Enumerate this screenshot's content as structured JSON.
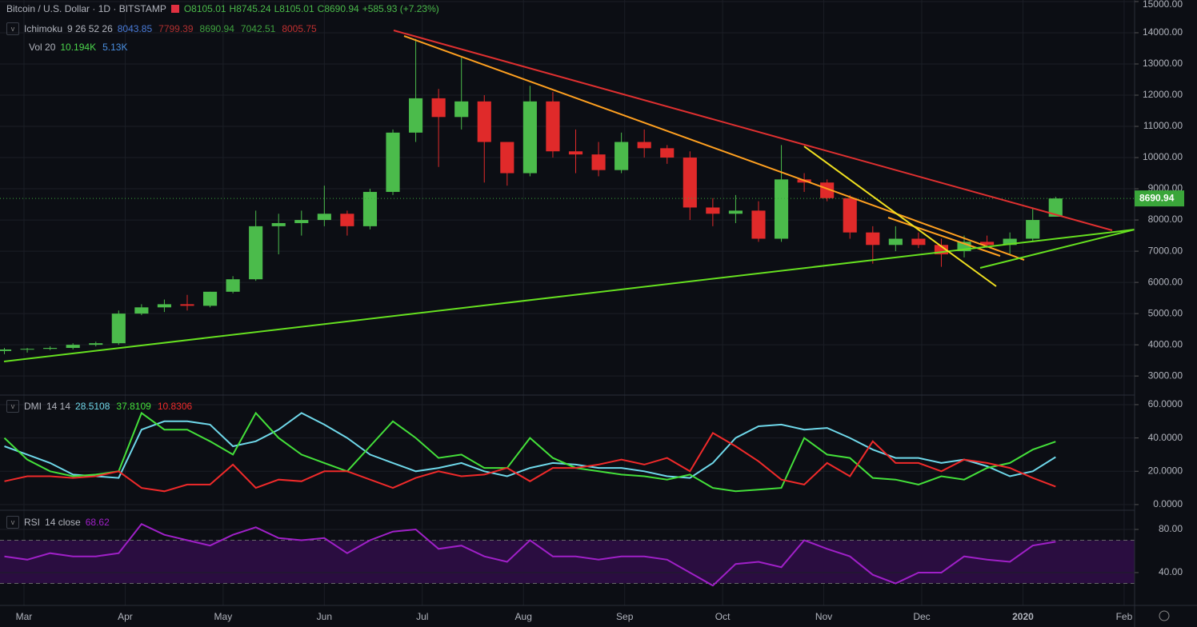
{
  "header": {
    "symbol": "Bitcoin / U.S. Dollar · 1D · BITSTAMP",
    "ohlc": [
      "O8105.01",
      "H8745.24",
      "L8105.01",
      "C8690.94",
      "+585.93 (+7.23%)"
    ],
    "ichimoku": {
      "name": "Ichimoku",
      "params": "9 26 52 26",
      "values": [
        8043.85,
        7799.39,
        8690.94,
        7042.51,
        8005.75
      ],
      "colors": [
        "#4a7bd8",
        "#b03030",
        "#3fa33f",
        "#3fa33f",
        "#c03030"
      ]
    },
    "volume": {
      "name": "Vol 20",
      "values": [
        "10.194K",
        "5.13K"
      ],
      "colors": [
        "#4bd54b",
        "#4a8fe0"
      ]
    },
    "dmi": {
      "name": "DMI",
      "params": "14 14"
    },
    "rsi": {
      "name": "RSI",
      "params": "14 close"
    }
  },
  "chart_data": [
    {
      "type": "candlestick",
      "up_color": "#4bbb4b",
      "down_color": "#e02a2a",
      "x": [
        -6,
        1,
        8,
        15,
        22,
        29,
        36,
        43,
        50,
        57,
        64,
        71,
        78,
        85,
        92,
        99,
        106,
        113,
        120,
        127,
        134,
        141,
        148,
        155,
        162,
        169,
        176,
        183,
        190,
        197,
        204,
        211,
        218,
        225,
        232,
        239,
        246,
        253,
        260,
        267,
        274,
        281,
        288,
        295,
        302,
        309,
        316
      ],
      "open": [
        3800,
        3850,
        3870,
        3900,
        4000,
        4050,
        5000,
        5200,
        5300,
        5250,
        5700,
        6100,
        7800,
        7900,
        8000,
        8200,
        7800,
        8900,
        10800,
        11900,
        11300,
        11800,
        10500,
        9500,
        11800,
        10200,
        10100,
        9600,
        10500,
        10300,
        10000,
        8400,
        8200,
        8300,
        7400,
        9300,
        9200,
        8700,
        7600,
        7200,
        7400,
        7200,
        7000,
        7300,
        7200,
        7400,
        8105.01
      ],
      "high": [
        3900,
        3900,
        3950,
        4050,
        4100,
        5100,
        5300,
        5450,
        5600,
        5700,
        6200,
        8300,
        8200,
        8300,
        9100,
        8300,
        9000,
        10900,
        13800,
        12200,
        13200,
        12000,
        10500,
        12300,
        12100,
        10900,
        10500,
        10800,
        10900,
        10400,
        10200,
        8700,
        8800,
        8600,
        10400,
        9500,
        9300,
        8800,
        7800,
        7800,
        7600,
        7400,
        7500,
        7500,
        7600,
        8400,
        8745.24
      ],
      "low": [
        3700,
        3750,
        3830,
        3850,
        3950,
        4000,
        4950,
        5050,
        5100,
        5200,
        5650,
        6050,
        6900,
        7500,
        7800,
        7500,
        7700,
        8800,
        10500,
        9700,
        10900,
        9200,
        9100,
        9400,
        10000,
        9500,
        9400,
        9500,
        10000,
        9800,
        8000,
        7800,
        7900,
        7300,
        7300,
        8900,
        8600,
        7400,
        6600,
        7000,
        7100,
        6500,
        6800,
        7100,
        6900,
        7300,
        8105.01
      ],
      "close": [
        3850,
        3870,
        3900,
        4000,
        4050,
        5000,
        5200,
        5300,
        5250,
        5700,
        6100,
        7800,
        7900,
        8000,
        8200,
        7800,
        8900,
        10800,
        11900,
        11300,
        11800,
        10500,
        9500,
        11800,
        10200,
        10100,
        9600,
        10500,
        10300,
        10000,
        8400,
        8200,
        8300,
        7400,
        9300,
        9200,
        8700,
        7600,
        7200,
        7400,
        7200,
        6900,
        7300,
        7200,
        7400,
        8000,
        8690.94
      ],
      "last_price": 8690.94,
      "last_color": "#3aa63a",
      "xlim": [
        -7.35,
        340.2
      ],
      "xticks": [
        {
          "value": 0,
          "label": "Mar"
        },
        {
          "value": 31,
          "label": "Apr"
        },
        {
          "value": 61,
          "label": "May"
        },
        {
          "value": 92,
          "label": "Jun"
        },
        {
          "value": 122,
          "label": "Jul"
        },
        {
          "value": 153,
          "label": "Aug"
        },
        {
          "value": 184,
          "label": "Sep"
        },
        {
          "value": 214,
          "label": "Oct"
        },
        {
          "value": 245,
          "label": "Nov"
        },
        {
          "value": 275,
          "label": "Dec"
        },
        {
          "value": 306,
          "label": "2020"
        },
        {
          "value": 337,
          "label": "Feb"
        }
      ],
      "ylim": [
        2440,
        15050
      ],
      "yticks": [
        {
          "value": 3000,
          "label": "3000.00"
        },
        {
          "value": 4000,
          "label": "4000.00"
        },
        {
          "value": 5000,
          "label": "5000.00"
        },
        {
          "value": 6000,
          "label": "6000.00"
        },
        {
          "value": 7000,
          "label": "7000.00"
        },
        {
          "value": 8000,
          "label": "8000.00"
        },
        {
          "value": 9000,
          "label": "9000.00"
        },
        {
          "value": 10000,
          "label": "10000.00"
        },
        {
          "value": 11000,
          "label": "11000.00"
        },
        {
          "value": 12000,
          "label": "12000.00"
        },
        {
          "value": 13000,
          "label": "13000.00"
        },
        {
          "value": 14000,
          "label": "14000.00"
        },
        {
          "value": 15000,
          "label": "15000.00"
        }
      ],
      "grid": true
    },
    {
      "type": "line",
      "x": [
        -6,
        1,
        8,
        15,
        22,
        29,
        36,
        43,
        50,
        57,
        64,
        71,
        78,
        85,
        92,
        99,
        106,
        113,
        120,
        127,
        134,
        141,
        148,
        155,
        162,
        169,
        176,
        183,
        190,
        197,
        204,
        211,
        218,
        225,
        232,
        239,
        246,
        253,
        260,
        267,
        274,
        281,
        288,
        295,
        302,
        309,
        316
      ],
      "xlim": [
        -7.35,
        340.2
      ],
      "series": [
        {
          "color": "#6fd8ea",
          "values": [
            35,
            30,
            25,
            18,
            17,
            16,
            45,
            50,
            50,
            48,
            35,
            38,
            45,
            55,
            48,
            40,
            30,
            25,
            20,
            22,
            25,
            20,
            17,
            22,
            25,
            24,
            22,
            22,
            20,
            17,
            16,
            25,
            40,
            47,
            48,
            45,
            46,
            40,
            33,
            28,
            28,
            25,
            27,
            23,
            17,
            20,
            28.5108
          ]
        },
        {
          "color": "#44e03a",
          "values": [
            40,
            27,
            20,
            17,
            18,
            20,
            55,
            45,
            45,
            38,
            30,
            55,
            40,
            30,
            25,
            20,
            35,
            50,
            40,
            28,
            30,
            22,
            22,
            40,
            28,
            22,
            20,
            18,
            17,
            15,
            18,
            10,
            8,
            9,
            10,
            40,
            30,
            28,
            16,
            15,
            12,
            17,
            15,
            22,
            25,
            33,
            37.8109
          ]
        },
        {
          "color": "#f02a2a",
          "values": [
            14,
            17,
            17,
            16,
            17,
            20,
            10,
            8,
            12,
            12,
            24,
            10,
            15,
            14,
            20,
            20,
            15,
            10,
            16,
            20,
            17,
            18,
            22,
            14,
            22,
            22,
            24,
            27,
            24,
            28,
            20,
            43,
            35,
            26,
            15,
            12,
            25,
            17,
            38,
            25,
            25,
            20,
            27,
            25,
            22,
            16,
            10.8306
          ]
        }
      ],
      "ylim": [
        -3.4,
        64.3
      ],
      "yticks": [
        {
          "value": 0,
          "label": "0.0000"
        },
        {
          "value": 20,
          "label": "20.0000"
        },
        {
          "value": 40,
          "label": "40.0000"
        },
        {
          "value": 60,
          "label": "60.0000"
        }
      ],
      "grid": true
    },
    {
      "type": "line",
      "x": [
        -6,
        1,
        8,
        15,
        22,
        29,
        36,
        43,
        50,
        57,
        64,
        71,
        78,
        85,
        92,
        99,
        106,
        113,
        120,
        127,
        134,
        141,
        148,
        155,
        162,
        169,
        176,
        183,
        190,
        197,
        204,
        211,
        218,
        225,
        232,
        239,
        246,
        253,
        260,
        267,
        274,
        281,
        288,
        295,
        302,
        309,
        316
      ],
      "xlim": [
        -7.35,
        340.2
      ],
      "series": [
        {
          "color": "#a020c8",
          "values": [
            55,
            52,
            58,
            55,
            55,
            58,
            85,
            75,
            70,
            65,
            75,
            82,
            72,
            70,
            72,
            58,
            70,
            78,
            80,
            62,
            65,
            55,
            50,
            70,
            55,
            55,
            52,
            55,
            55,
            52,
            40,
            28,
            48,
            50,
            45,
            70,
            62,
            55,
            38,
            30,
            40,
            40,
            55,
            52,
            50,
            65,
            68.62
          ]
        }
      ],
      "band": [
        30,
        70
      ],
      "band_color": "#2a0d40",
      "ylim": [
        9.6,
        96.3
      ],
      "yticks": [
        {
          "value": 40,
          "label": "40.00"
        },
        {
          "value": 80,
          "label": "80.00"
        }
      ],
      "grid": true
    }
  ]
}
